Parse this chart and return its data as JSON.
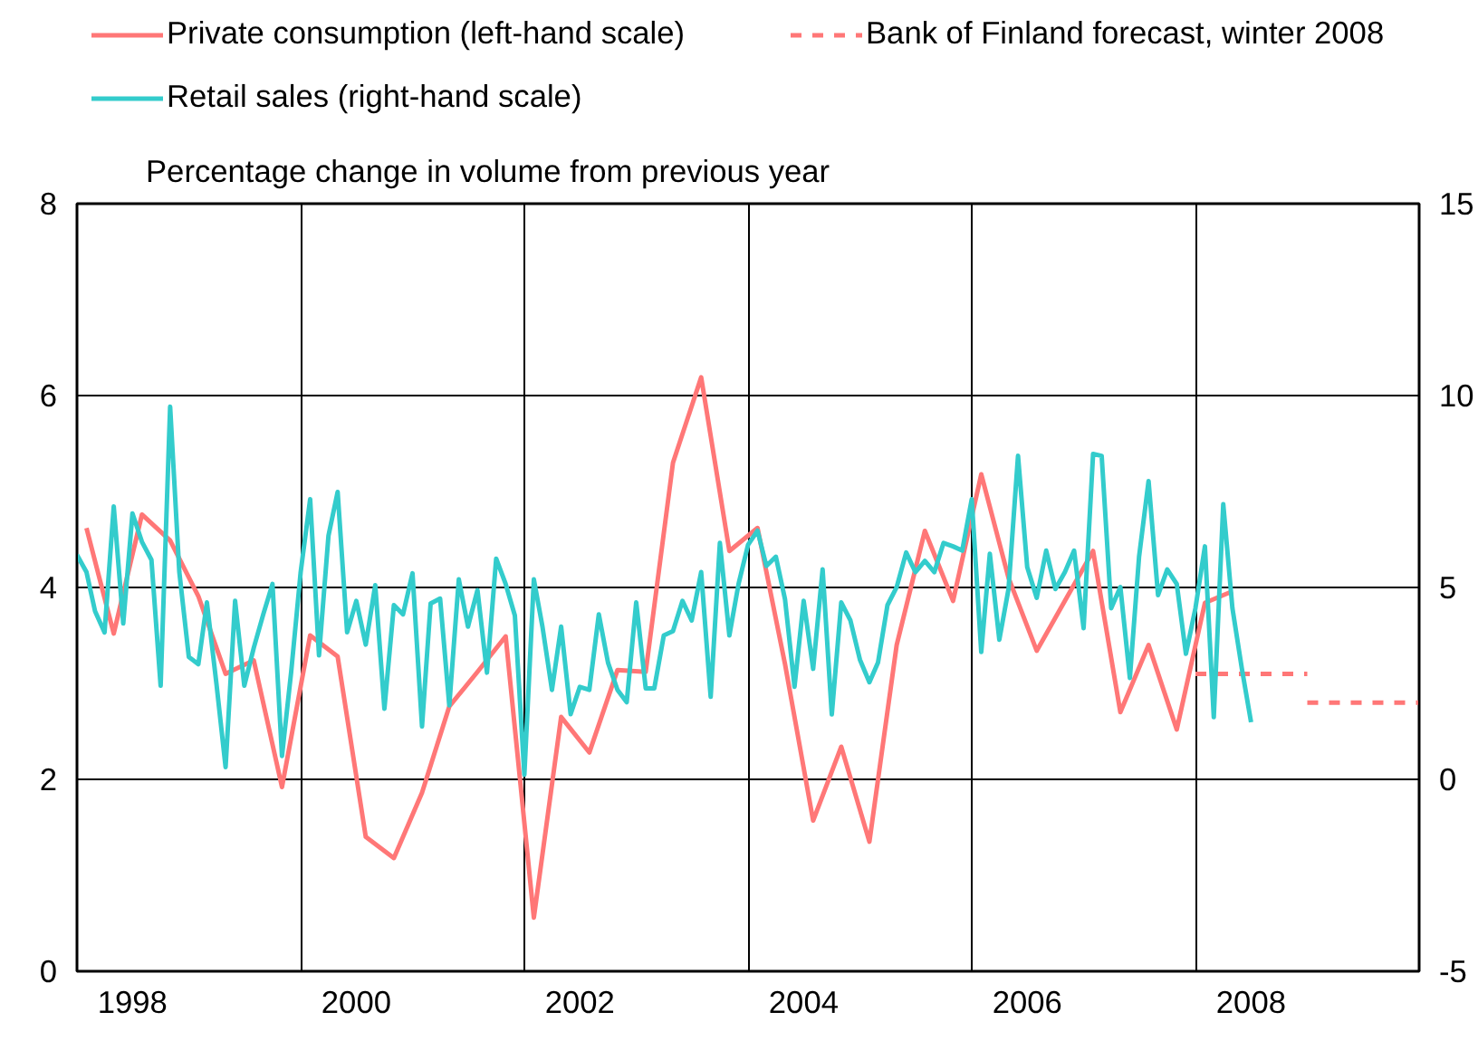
{
  "chart_data": {
    "type": "line",
    "ylabel": "Percentage change in volume from previous year",
    "legend": "top",
    "grid": true,
    "line_style": "solid",
    "xlim": [
      "1998",
      "2010"
    ],
    "xticks": [
      {
        "value": "1998-07",
        "label": "1998"
      },
      {
        "value": "2000-07",
        "label": "2000"
      },
      {
        "value": "2002-07",
        "label": "2002"
      },
      {
        "value": "2004-07",
        "label": "2004"
      },
      {
        "value": "2006-07",
        "label": "2006"
      },
      {
        "value": "2008-07",
        "label": "2008"
      },
      {
        "value": "2000",
        "label": null
      },
      {
        "value": "2002",
        "label": null
      },
      {
        "value": "2004",
        "label": null
      },
      {
        "value": "2006",
        "label": null
      },
      {
        "value": "2008",
        "label": null
      }
    ],
    "ylim": [
      0,
      8
    ],
    "yticks": [
      0,
      2,
      4,
      6,
      8
    ],
    "y2lim": [
      -5,
      15
    ],
    "y2ticks": [
      -5,
      0,
      5,
      10,
      15
    ],
    "series": [
      {
        "name": "Private consumption (left-hand scale)",
        "color": "#ff7777",
        "x": [
          "1998-02",
          "1998-05",
          "1998-08",
          "1998-11",
          "1999-02",
          "1999-05",
          "1999-08",
          "1999-11",
          "2000-02",
          "2000-05",
          "2000-08",
          "2000-11",
          "2001-02",
          "2001-05",
          "2001-08",
          "2001-11",
          "2002-02",
          "2002-05",
          "2002-08",
          "2002-11",
          "2003-02",
          "2003-05",
          "2003-08",
          "2003-11",
          "2004-02",
          "2004-05",
          "2004-08",
          "2004-11",
          "2005-02",
          "2005-05",
          "2005-08",
          "2005-11",
          "2006-02",
          "2006-05",
          "2006-08",
          "2006-11",
          "2007-02",
          "2007-05",
          "2007-08",
          "2007-11",
          "2008-02",
          "2008-05"
        ],
        "values": [
          4.62,
          3.52,
          4.76,
          4.49,
          3.91,
          3.1,
          3.24,
          1.92,
          3.5,
          3.28,
          1.4,
          1.18,
          1.86,
          2.76,
          3.12,
          3.49,
          0.56,
          2.65,
          2.28,
          3.14,
          3.12,
          5.3,
          6.19,
          4.38,
          4.62,
          3.2,
          1.57,
          2.34,
          1.35,
          3.4,
          4.59,
          3.86,
          5.18,
          4.1,
          3.34,
          3.86,
          4.38,
          2.7,
          3.4,
          2.52,
          3.84,
          3.96
        ]
      },
      {
        "name": "Bank of Finland forecast, winter 2008",
        "color": "#ff7777",
        "line_style": "dashed",
        "x": [
          "2008",
          "2009"
        ],
        "values": [
          3.1,
          3.1
        ]
      },
      {
        "color": "#ff7777",
        "line_style": "dashed",
        "x": [
          "2009",
          "2010"
        ],
        "values": [
          2.8,
          2.8
        ]
      },
      {
        "name": "Retail sales (right-hand scale)",
        "color": "#33cccc",
        "axis": "y2",
        "x": [
          "1998-01",
          "1998-02",
          "1998-03",
          "1998-04",
          "1998-05",
          "1998-06",
          "1998-07",
          "1998-08",
          "1998-09",
          "1998-10",
          "1998-11",
          "1998-12",
          "1999-01",
          "1999-02",
          "1999-03",
          "1999-04",
          "1999-05",
          "1999-06",
          "1999-07",
          "1999-08",
          "1999-09",
          "1999-10",
          "1999-11",
          "1999-12",
          "2000-01",
          "2000-02",
          "2000-03",
          "2000-04",
          "2000-05",
          "2000-06",
          "2000-07",
          "2000-08",
          "2000-09",
          "2000-10",
          "2000-11",
          "2000-12",
          "2001-01",
          "2001-02",
          "2001-03",
          "2001-04",
          "2001-05",
          "2001-06",
          "2001-07",
          "2001-08",
          "2001-09",
          "2001-10",
          "2001-11",
          "2001-12",
          "2002-01",
          "2002-02",
          "2002-03",
          "2002-04",
          "2002-05",
          "2002-06",
          "2002-07",
          "2002-08",
          "2002-09",
          "2002-10",
          "2002-11",
          "2002-12",
          "2003-01",
          "2003-02",
          "2003-03",
          "2003-04",
          "2003-05",
          "2003-06",
          "2003-07",
          "2003-08",
          "2003-09",
          "2003-10",
          "2003-11",
          "2003-12",
          "2004-01",
          "2004-02",
          "2004-03",
          "2004-04",
          "2004-05",
          "2004-06",
          "2004-07",
          "2004-08",
          "2004-09",
          "2004-10",
          "2004-11",
          "2004-12",
          "2005-01",
          "2005-02",
          "2005-03",
          "2005-04",
          "2005-05",
          "2005-06",
          "2005-07",
          "2005-08",
          "2005-09",
          "2005-10",
          "2005-11",
          "2005-12",
          "2006-01",
          "2006-02",
          "2006-03",
          "2006-04",
          "2006-05",
          "2006-06",
          "2006-07",
          "2006-08",
          "2006-09",
          "2006-10",
          "2006-11",
          "2006-12",
          "2007-01",
          "2007-02",
          "2007-03",
          "2007-04",
          "2007-05",
          "2007-06",
          "2007-07",
          "2007-08",
          "2007-09",
          "2007-10",
          "2007-11",
          "2007-12",
          "2008-01",
          "2008-02",
          "2008-03",
          "2008-04",
          "2008-05",
          "2008-06",
          "2008-07"
        ],
        "values": [
          5.85,
          5.4,
          4.38,
          3.83,
          7.11,
          4.06,
          6.93,
          6.19,
          5.72,
          2.44,
          9.71,
          5.4,
          3.19,
          3.0,
          4.61,
          2.5,
          0.32,
          4.65,
          2.44,
          3.43,
          4.3,
          5.09,
          0.61,
          2.8,
          5.4,
          7.3,
          3.23,
          6.35,
          7.49,
          3.83,
          4.65,
          3.51,
          5.06,
          1.84,
          4.54,
          4.3,
          5.37,
          1.38,
          4.58,
          4.71,
          1.93,
          5.21,
          3.98,
          4.93,
          2.78,
          5.75,
          5.09,
          4.27,
          0.12,
          5.21,
          3.98,
          2.33,
          3.98,
          1.7,
          2.41,
          2.33,
          4.3,
          3.04,
          2.33,
          2.01,
          4.61,
          2.37,
          2.37,
          3.75,
          3.86,
          4.65,
          4.14,
          5.4,
          2.15,
          6.16,
          3.75,
          5.09,
          6.11,
          6.48,
          5.56,
          5.8,
          4.69,
          2.41,
          4.65,
          2.88,
          5.47,
          1.69,
          4.61,
          4.14,
          3.12,
          2.53,
          3.04,
          4.54,
          5.01,
          5.91,
          5.4,
          5.69,
          5.4,
          6.16,
          6.07,
          5.96,
          7.3,
          3.32,
          5.88,
          3.64,
          4.96,
          8.43,
          5.53,
          4.73,
          5.96,
          4.96,
          5.4,
          5.96,
          3.94,
          8.48,
          8.43,
          4.46,
          5.01,
          2.64,
          5.8,
          7.77,
          4.8,
          5.47,
          5.09,
          3.27,
          4.46,
          6.07,
          1.62,
          7.17,
          4.46,
          2.88,
          1.49
        ]
      }
    ]
  }
}
